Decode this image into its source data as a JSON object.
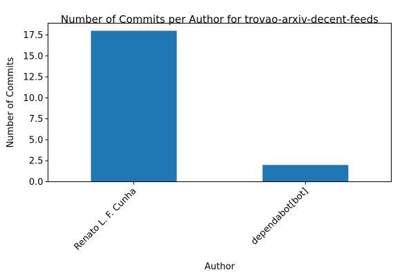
{
  "chart_data": {
    "type": "bar",
    "title": "Number of Commits per Author for trovao-arxiv-decent-feeds",
    "xlabel": "Author",
    "ylabel": "Number of Commits",
    "categories": [
      "Renato L. F. Cunha",
      "dependabot[bot]"
    ],
    "values": [
      18,
      2
    ],
    "ylim": [
      0,
      18.9
    ],
    "yticks": [
      0.0,
      2.5,
      5.0,
      7.5,
      10.0,
      12.5,
      15.0,
      17.5
    ],
    "ytick_labels": [
      "0.0",
      "2.5",
      "5.0",
      "7.5",
      "10.0",
      "12.5",
      "15.0",
      "17.5"
    ],
    "bar_color": "#1f77b4",
    "grid": false,
    "legend": "none"
  }
}
